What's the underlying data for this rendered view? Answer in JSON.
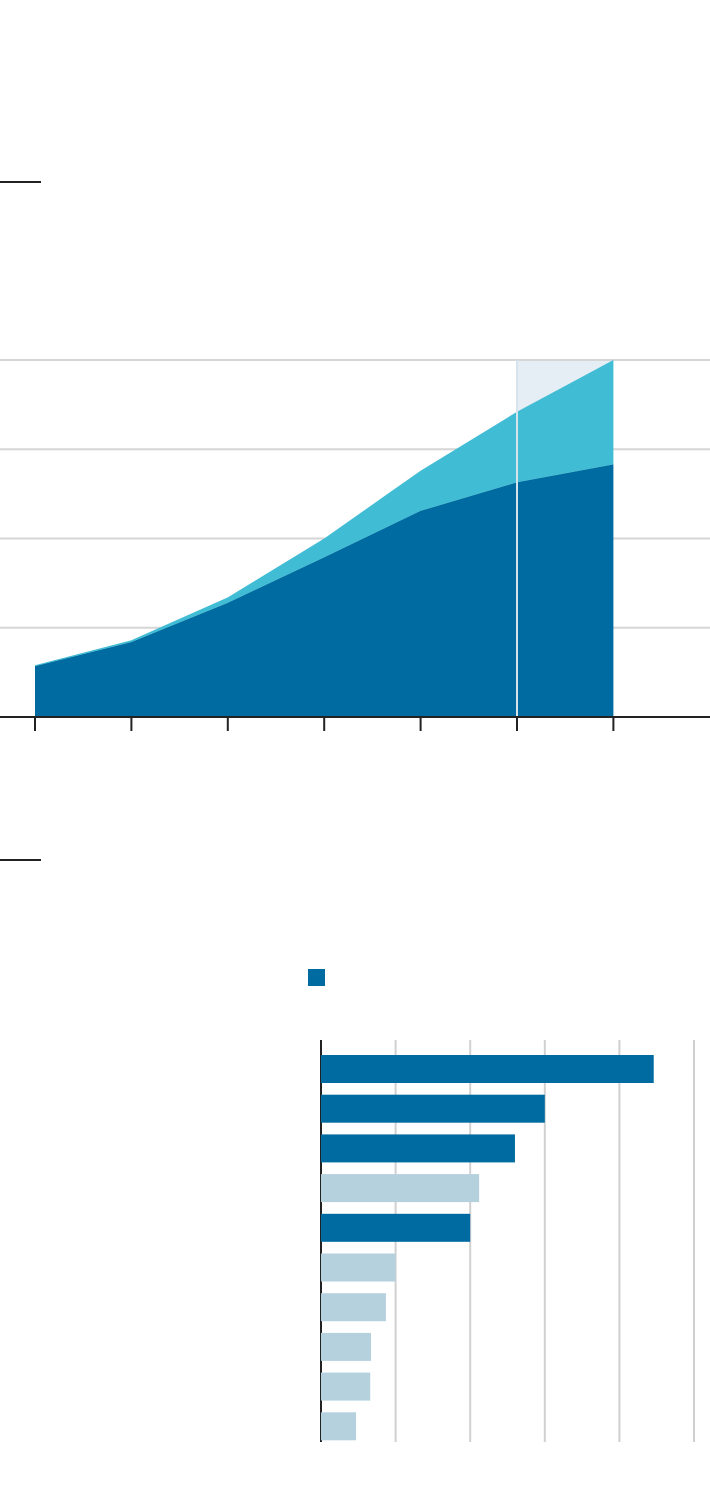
{
  "chart_data": [
    {
      "type": "area",
      "stacked": true,
      "categories": [
        null,
        null,
        null,
        null,
        null,
        null,
        null
      ],
      "series": [
        {
          "color": "#006ba0",
          "values": [
            0.57,
            0.84,
            1.28,
            1.79,
            2.31,
            2.63,
            2.83
          ]
        },
        {
          "color": "#40bcd4",
          "values": [
            0.01,
            0.02,
            0.06,
            0.21,
            0.45,
            0.79,
            1.17
          ]
        }
      ],
      "ylim": [
        0,
        4
      ],
      "yticks": [
        0,
        1,
        2,
        3,
        4
      ],
      "grid": true
    },
    {
      "type": "hbar",
      "categories": [
        null,
        null,
        null,
        null,
        null,
        null,
        null,
        null,
        null,
        null
      ],
      "values": [
        4.46,
        3.0,
        2.6,
        2.12,
        2.0,
        1.0,
        0.87,
        0.67,
        0.66,
        0.47
      ],
      "colors": [
        "#006ba0",
        "#006ba0",
        "#006ba0",
        "#b5d1de",
        "#006ba0",
        "#b5d1de",
        "#b5d1de",
        "#b5d1de",
        "#b5d1de",
        "#b5d1de"
      ],
      "xlim": [
        0,
        5
      ],
      "xticks": [
        0,
        1,
        2,
        3,
        4,
        5
      ],
      "grid": true
    }
  ]
}
